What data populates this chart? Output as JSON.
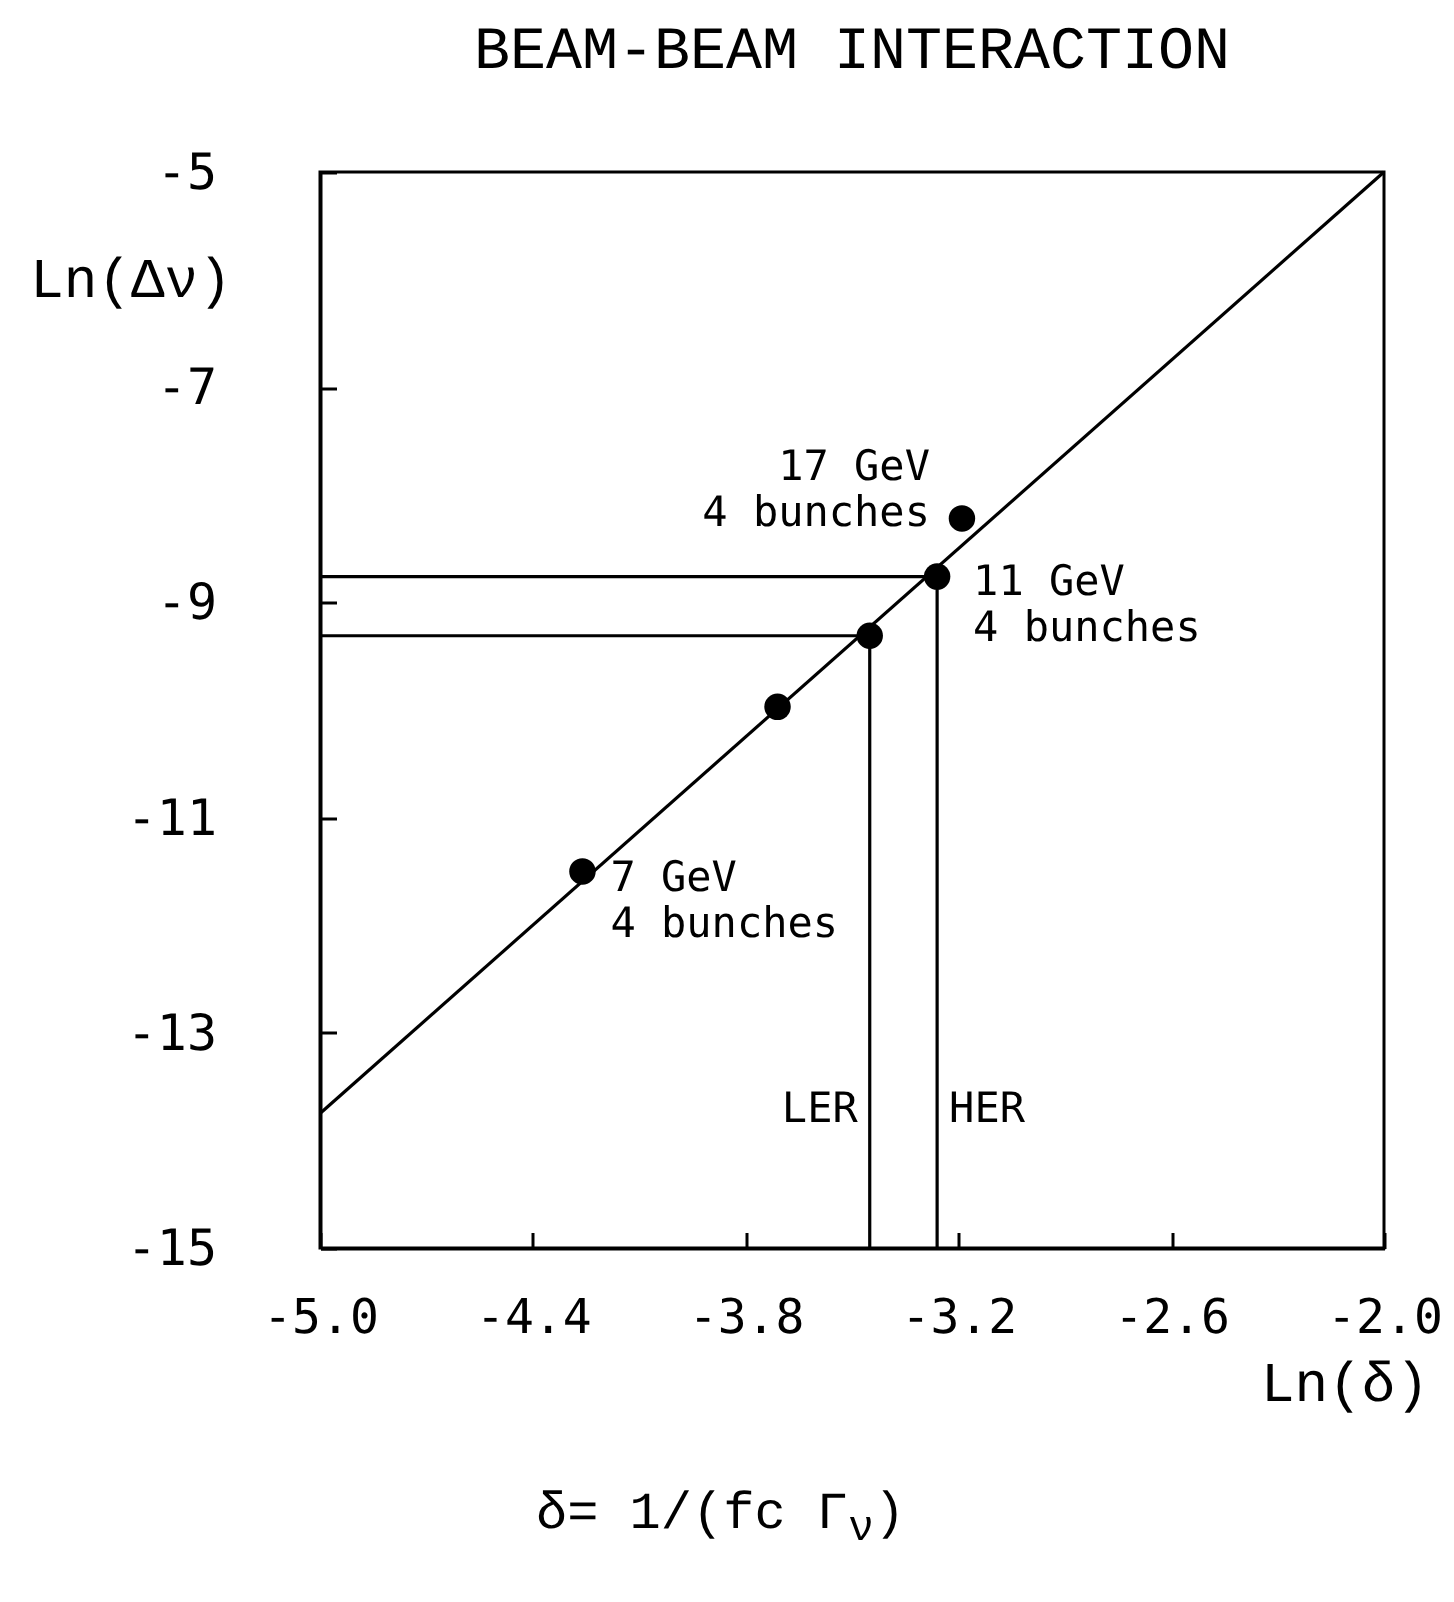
{
  "chart_data": {
    "type": "scatter",
    "title": "BEAM-BEAM INTERACTION",
    "xlabel": "Ln(δ)",
    "ylabel": "Ln(Δν)",
    "xlim": [
      -5,
      -2
    ],
    "xticks": [
      {
        "value": -5,
        "label": "-5.0"
      },
      -4.4,
      -3.8,
      -3.2,
      -2.6,
      {
        "value": -2,
        "label": "-2.0"
      }
    ],
    "ylim": [
      -15,
      -5
    ],
    "yticks": [
      -15,
      -13,
      -11,
      -9,
      -7,
      -5
    ],
    "grid": false,
    "line_style": "solid",
    "series": [
      {
        "type": "line",
        "x": [
          -5,
          -2
        ],
        "values": [
          -13.75,
          -5
        ],
        "color": "#000000"
      },
      {
        "type": "line",
        "name": "LER",
        "x": [
          -5,
          -3.45,
          -3.45
        ],
        "values": [
          -9.31,
          -9.31,
          -15
        ],
        "color": "#000000"
      },
      {
        "type": "line",
        "name": "HER",
        "x": [
          -5,
          -3.26,
          -3.26
        ],
        "values": [
          -8.76,
          -8.76,
          -15
        ],
        "color": "#000000"
      },
      {
        "x": [
          -4.26,
          -3.71,
          -3.45,
          -3.26,
          -3.19
        ],
        "values": [
          -11.5,
          -9.97,
          -9.31,
          -8.76,
          -8.22
        ],
        "color": "#000000",
        "marker": "circle"
      }
    ],
    "annotations": [
      {
        "text": "17 GeV\n4 bunches",
        "x": -3.19,
        "y": -8.22
      },
      {
        "text": "11 GeV\n4 bunches",
        "x": -3.26,
        "y": -8.76
      },
      {
        "text": "7 GeV\n4 bunches",
        "x": -4.26,
        "y": -11.5
      },
      "δ= 1/(fc Γ$_{ν}$)"
    ]
  }
}
